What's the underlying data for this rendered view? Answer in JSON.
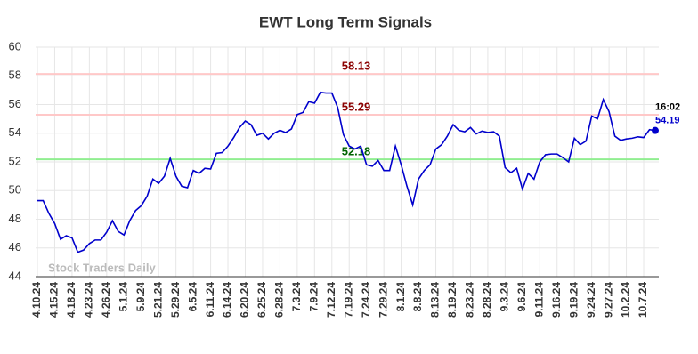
{
  "chart_data": {
    "type": "line",
    "title": "EWT Long Term Signals",
    "categories": [
      "4.10.24",
      null,
      null,
      "4.15.24",
      null,
      null,
      "4.18.24",
      null,
      null,
      "4.23.24",
      null,
      null,
      "4.26.24",
      null,
      null,
      "5.1.24",
      null,
      null,
      "5.9.24",
      null,
      null,
      "5.21.24",
      null,
      null,
      "5.29.24",
      null,
      null,
      "6.5.24",
      null,
      null,
      "6.11.24",
      null,
      null,
      "6.14.24",
      null,
      null,
      "6.20.24",
      null,
      null,
      "6.25.24",
      null,
      null,
      "6.28.24",
      null,
      null,
      "7.3.24",
      null,
      null,
      "7.9.24",
      null,
      null,
      "7.12.24",
      null,
      null,
      "7.19.24",
      null,
      null,
      "7.24.24",
      null,
      null,
      "7.29.24",
      null,
      null,
      "8.1.24",
      null,
      null,
      "8.8.24",
      null,
      null,
      "8.13.24",
      null,
      null,
      "8.19.24",
      null,
      null,
      "8.23.24",
      null,
      null,
      "8.28.24",
      null,
      null,
      "9.3.24",
      null,
      null,
      "9.6.24",
      null,
      null,
      "9.11.24",
      null,
      null,
      "9.16.24",
      null,
      null,
      "9.19.24",
      null,
      null,
      "9.24.24",
      null,
      null,
      "9.27.24",
      null,
      null,
      "10.2.24",
      null,
      null,
      "10.7.24",
      null,
      null
    ],
    "values": [
      49.3,
      49.3,
      48.4,
      47.7,
      46.6,
      46.85,
      46.7,
      45.7,
      45.85,
      46.3,
      46.55,
      46.55,
      47.1,
      47.9,
      47.15,
      46.9,
      47.9,
      48.6,
      48.95,
      49.6,
      50.8,
      50.5,
      51.0,
      52.25,
      51.0,
      50.3,
      50.2,
      51.4,
      51.2,
      51.55,
      51.5,
      52.6,
      52.65,
      53.1,
      53.7,
      54.4,
      54.85,
      54.6,
      53.85,
      54.0,
      53.6,
      54.0,
      54.2,
      54.05,
      54.3,
      55.3,
      55.45,
      56.2,
      56.1,
      56.85,
      56.8,
      56.8,
      55.8,
      53.9,
      53.1,
      52.9,
      53.1,
      51.8,
      51.7,
      52.1,
      51.4,
      51.4,
      53.1,
      51.8,
      50.3,
      49.0,
      50.8,
      51.4,
      51.8,
      52.9,
      53.2,
      53.8,
      54.6,
      54.2,
      54.1,
      54.4,
      53.95,
      54.15,
      54.05,
      54.1,
      53.8,
      51.6,
      51.25,
      51.55,
      50.1,
      51.2,
      50.8,
      52.0,
      52.5,
      52.55,
      52.55,
      52.3,
      52.0,
      53.65,
      53.2,
      53.45,
      55.2,
      55.0,
      56.35,
      55.5,
      53.8,
      53.5,
      53.6,
      53.65,
      53.75,
      53.7,
      54.25,
      54.19
    ],
    "color": "#0000cc",
    "ylim": [
      44,
      60
    ],
    "yticks": [
      44,
      46,
      48,
      50,
      52,
      54,
      56,
      58,
      60
    ],
    "grid": true,
    "hlines": [
      {
        "value": 58.13,
        "color": "#ffc8c8",
        "label_color": "#8b0000"
      },
      {
        "value": 55.29,
        "color": "#ffc8c8",
        "label_color": "#8b0000"
      },
      {
        "value": 52.18,
        "color": "#90ee90",
        "label_color": "#006400"
      }
    ],
    "last_time": "16:02",
    "watermark": "Stock Traders Daily"
  }
}
